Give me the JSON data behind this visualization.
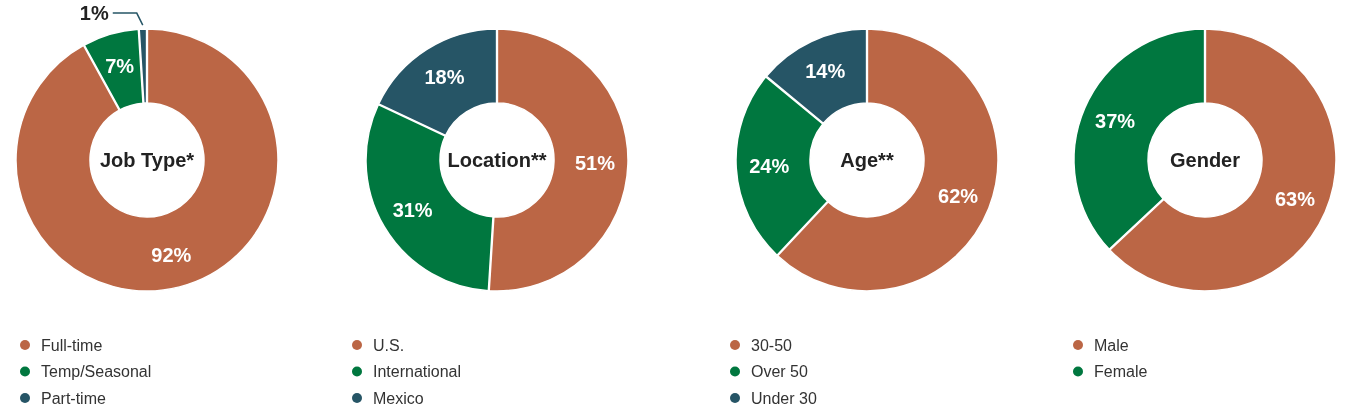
{
  "chart_data": [
    {
      "type": "donut",
      "title": "Job Type*",
      "categories": [
        "Full-time",
        "Temp/Seasonal",
        "Part-time"
      ],
      "values": [
        92,
        7,
        1
      ],
      "colors": [
        "#bb6645",
        "#00773f",
        "#265566"
      ],
      "value_labels": [
        "92%",
        "7%",
        "1%"
      ],
      "legend": "bottom"
    },
    {
      "type": "donut",
      "title": "Location**",
      "categories": [
        "U.S.",
        "International",
        "Mexico"
      ],
      "values": [
        51,
        31,
        18
      ],
      "colors": [
        "#bb6645",
        "#00773f",
        "#265566"
      ],
      "value_labels": [
        "51%",
        "31%",
        "18%"
      ],
      "legend": "bottom"
    },
    {
      "type": "donut",
      "title": "Age**",
      "categories": [
        "30-50",
        "Over 50",
        "Under 30"
      ],
      "values": [
        62,
        24,
        14
      ],
      "colors": [
        "#bb6645",
        "#00773f",
        "#265566"
      ],
      "value_labels": [
        "62%",
        "24%",
        "14%"
      ],
      "legend": "bottom"
    },
    {
      "type": "donut",
      "title": "Gender",
      "categories": [
        "Male",
        "Female"
      ],
      "values": [
        63,
        37
      ],
      "colors": [
        "#bb6645",
        "#00773f"
      ],
      "value_labels": [
        "63%",
        "37%"
      ],
      "legend": "bottom"
    }
  ]
}
